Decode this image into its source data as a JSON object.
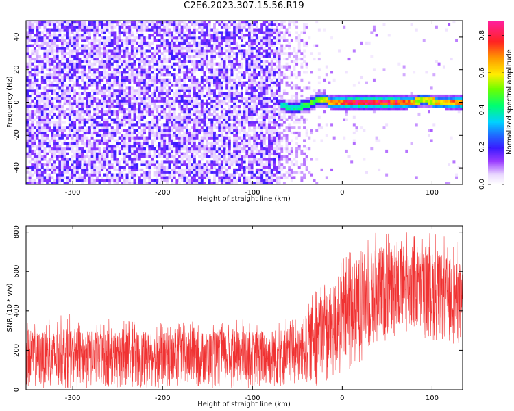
{
  "title": "C2E6.2023.307.15.56.R19",
  "chart_data": [
    {
      "type": "heatmap",
      "title": "C2E6.2023.307.15.56.R19",
      "xlabel": "Height of straight line (km)",
      "ylabel": "Frequency (Hz)",
      "xlim": [
        -352,
        134
      ],
      "ylim": [
        -50,
        50
      ],
      "xticks": [
        -300,
        -200,
        -100,
        0,
        100
      ],
      "yticks": [
        -40,
        -20,
        0,
        20,
        40
      ],
      "description_of_field": "Noise (amplitude ~0.1-0.3) spread across all frequencies for heights below about -40 km; a narrow high-amplitude band near 0 Hz from about -70 km to 134 km",
      "signal_band": [
        {
          "x": -68,
          "freq": -2,
          "amp": 0.35
        },
        {
          "x": -55,
          "freq": -3,
          "amp": 0.4
        },
        {
          "x": -40,
          "freq": -2,
          "amp": 0.45
        },
        {
          "x": -25,
          "freq": 2,
          "amp": 0.5
        },
        {
          "x": -10,
          "freq": 0,
          "amp": 0.7
        },
        {
          "x": 20,
          "freq": 0,
          "amp": 0.85
        },
        {
          "x": 60,
          "freq": 0,
          "amp": 0.8
        },
        {
          "x": 90,
          "freq": 1,
          "amp": 0.55
        },
        {
          "x": 134,
          "freq": 0,
          "amp": 0.75
        }
      ],
      "colorbar": {
        "label": "Normalized spectral amplitude",
        "ticks": [
          0.0,
          0.2,
          0.4,
          0.6,
          0.8
        ],
        "range": [
          0.0,
          0.88
        ]
      }
    },
    {
      "type": "line",
      "xlabel": "Height of straight line (km)",
      "ylabel": "SNR (10 * v/v)",
      "xlim": [
        -352,
        134
      ],
      "ylim": [
        0,
        830
      ],
      "xticks": [
        -300,
        -200,
        -100,
        0,
        100
      ],
      "yticks": [
        0,
        200,
        400,
        600,
        800
      ],
      "color": "#f03232",
      "series": [
        {
          "name": "SNR",
          "envelope": [
            {
              "x": -352,
              "low": 10,
              "high": 290,
              "peak": 340
            },
            {
              "x": -300,
              "low": 5,
              "high": 300,
              "peak": 390
            },
            {
              "x": -200,
              "low": 5,
              "high": 290,
              "peak": 340
            },
            {
              "x": -100,
              "low": 5,
              "high": 300,
              "peak": 360
            },
            {
              "x": -50,
              "low": 10,
              "high": 320,
              "peak": 370
            },
            {
              "x": -40,
              "low": 15,
              "high": 380,
              "peak": 440
            },
            {
              "x": -25,
              "low": 20,
              "high": 470,
              "peak": 560
            },
            {
              "x": 0,
              "low": 50,
              "high": 590,
              "peak": 680
            },
            {
              "x": 20,
              "low": 140,
              "high": 680,
              "peak": 780
            },
            {
              "x": 40,
              "low": 230,
              "high": 730,
              "peak": 840
            },
            {
              "x": 70,
              "low": 280,
              "high": 730,
              "peak": 810
            },
            {
              "x": 100,
              "low": 240,
              "high": 700,
              "peak": 800
            },
            {
              "x": 134,
              "low": 220,
              "high": 650,
              "peak": 750
            }
          ]
        }
      ]
    }
  ]
}
